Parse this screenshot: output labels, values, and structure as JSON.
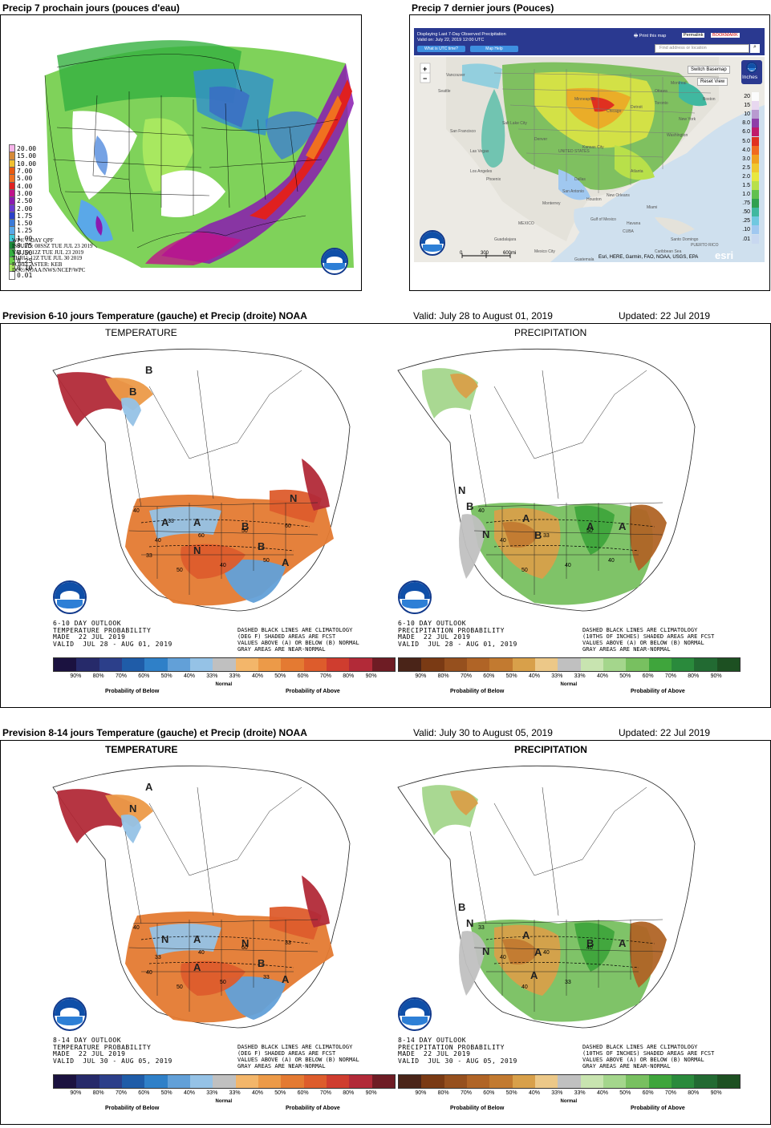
{
  "panel1": {
    "title": "Precip 7 prochain jours (pouces d'eau)",
    "legend": [
      {
        "label": "20.00",
        "color": "#f5b3e8"
      },
      {
        "label": "15.00",
        "color": "#d58a3a"
      },
      {
        "label": "10.00",
        "color": "#f0c030"
      },
      {
        "label": "7.00",
        "color": "#e85a10"
      },
      {
        "label": "5.00",
        "color": "#f07020"
      },
      {
        "label": "4.00",
        "color": "#e02020"
      },
      {
        "label": "3.00",
        "color": "#c0128a"
      },
      {
        "label": "2.50",
        "color": "#8a1ab0"
      },
      {
        "label": "2.00",
        "color": "#6a3ad0"
      },
      {
        "label": "1.75",
        "color": "#2a40c8"
      },
      {
        "label": "1.50",
        "color": "#3a7ad8"
      },
      {
        "label": "1.25",
        "color": "#5aa8e8"
      },
      {
        "label": "1.00",
        "color": "#40c8d8"
      },
      {
        "label": "0.75",
        "color": "#1a8a3a"
      },
      {
        "label": "0.50",
        "color": "#34b040"
      },
      {
        "label": "0.25",
        "color": "#6ad04a"
      },
      {
        "label": "0.10",
        "color": "#a8e860"
      },
      {
        "label": "0.01",
        "color": "#ffffff"
      }
    ],
    "info": "WPC 7-DAY QPF\nISSUED: 08SSZ TUE JUL 23 2019\nVALID: 12Z TUE JUL 23 2019\nTHRU: 12Z TUE JUL 30 2019\nFORECASTER: KEB\nDOC/NOAA/NWS/NCEP/WPC"
  },
  "panel2": {
    "title": "Precip 7 dernier jours (Pouces)",
    "header_line1": "Displaying Last 7-Day Observed Precipitation",
    "header_line2": "Valid on: July 22, 2019 12:00 UTC",
    "btn_utc": "What is UTC time?",
    "btn_help": "Map Help",
    "print_label": "Print this map",
    "permalink": "Permalink",
    "bookmark": "BOOKMARK",
    "search_placeholder": "Find address or location",
    "switch_basemap": "Switch Basemap",
    "reset_view": "Reset View",
    "inches_label": "Inches",
    "zoom_in": "+",
    "zoom_out": "−",
    "scale_labels": [
      "0",
      "300",
      "600mi"
    ],
    "attribution": "Esri, HERE, Garmin, FAO, NOAA, USGS, EPA",
    "esri": "esri",
    "place_labels": [
      "Ottawa",
      "Montreal",
      "Toronto",
      "Chicago",
      "New York",
      "Washington",
      "San Francisco",
      "Los Angeles",
      "Dallas",
      "Houston",
      "Gulf of Mexico",
      "MEXICO",
      "Guadalajara",
      "Mexico City",
      "CUBA",
      "Havana",
      "Guatemala",
      "Caribbean Sea",
      "PUERTO RICO",
      "Santo Domingo",
      "Phoenix",
      "Denver",
      "UNITED STATES",
      "Kansas City",
      "Atlanta",
      "Miami",
      "Monterrey",
      "Vancouver",
      "Seattle",
      "Minneapolis",
      "Detroit",
      "Boston",
      "New Orleans",
      "San Antonio",
      "Las Vegas",
      "Salt Lake City"
    ],
    "legend": [
      {
        "label": "20",
        "color": "#fbfbfb"
      },
      {
        "label": "15",
        "color": "#e8d8f0"
      },
      {
        "label": "10",
        "color": "#b89ad0"
      },
      {
        "label": "8.0",
        "color": "#8e3ea8"
      },
      {
        "label": "6.0",
        "color": "#c01b6a"
      },
      {
        "label": "5.0",
        "color": "#e03020"
      },
      {
        "label": "4.0",
        "color": "#f06a20"
      },
      {
        "label": "3.0",
        "color": "#f0a020"
      },
      {
        "label": "2.5",
        "color": "#f0c830"
      },
      {
        "label": "2.0",
        "color": "#e8e840"
      },
      {
        "label": "1.5",
        "color": "#b8e04a"
      },
      {
        "label": "1.0",
        "color": "#60c050"
      },
      {
        "label": ".75",
        "color": "#30a050"
      },
      {
        "label": ".50",
        "color": "#40b8a0"
      },
      {
        "label": ".25",
        "color": "#70c8e0"
      },
      {
        "label": ".10",
        "color": "#a0c8f0"
      },
      {
        "label": ".01",
        "color": "#c8d8f0"
      }
    ]
  },
  "section2": {
    "title": "Prevision 6-10 jours Temperature (gauche) et Precip (droite) NOAA",
    "valid": "Valid: July 28 to August 01, 2019",
    "updated": "Updated: 22 Jul 2019",
    "temp_label": "TEMPERATURE",
    "precip_label": "PRECIPITATION",
    "temp_outlook": "6-10 DAY OUTLOOK\nTEMPERATURE PROBABILITY\nMADE  22 JUL 2019\nVALID  JUL 28 - AUG 01, 2019",
    "precip_outlook": "6-10 DAY OUTLOOK\nPRECIPITATION PROBABILITY\nMADE  22 JUL 2019\nVALID  JUL 28 - AUG 01, 2019",
    "temp_notes": "DASHED BLACK LINES ARE CLIMATOLOGY\n(DEG F) SHADED AREAS ARE FCST\nVALUES ABOVE (A) OR BELOW (B) NORMAL\nGRAY AREAS ARE NEAR-NORMAL",
    "precip_notes": "DASHED BLACK LINES ARE CLIMATOLOGY\n(10THS OF INCHES) SHADED AREAS ARE FCST\nVALUES ABOVE (A) OR BELOW (B) NORMAL\nGRAY AREAS ARE NEAR-NORMAL",
    "temp_letters": [
      "B",
      "B",
      "N",
      "A",
      "A",
      "B",
      "A",
      "B",
      "N"
    ],
    "precip_letters": [
      "B",
      "N",
      "A",
      "A",
      "B",
      "A",
      "N"
    ],
    "contour_values_temp": [
      "40",
      "40",
      "50",
      "60",
      "40",
      "50",
      "50",
      "60",
      "33",
      "33"
    ],
    "contour_values_precip": [
      "40",
      "40",
      "50",
      "33",
      "40",
      "50",
      "40"
    ]
  },
  "section3": {
    "title": "Prevision 8-14 jours Temperature (gauche) et Precip (droite) NOAA",
    "valid": "Valid: July 30 to August 05, 2019",
    "updated": "Updated: 22 Jul 2019",
    "temp_label": "TEMPERATURE",
    "precip_label": "PRECIPITATION",
    "temp_outlook": "8-14 DAY OUTLOOK\nTEMPERATURE PROBABILITY\nMADE  22 JUL 2019\nVALID  JUL 30 - AUG 05, 2019",
    "precip_outlook": "8-14 DAY OUTLOOK\nPRECIPITATION PROBABILITY\nMADE  22 JUL 2019\nVALID  JUL 30 - AUG 05, 2019",
    "temp_notes": "DASHED BLACK LINES ARE CLIMATOLOGY\n(DEG F) SHADED AREAS ARE FCST\nVALUES ABOVE (A) OR BELOW (B) NORMAL\nGRAY AREAS ARE NEAR-NORMAL",
    "precip_notes": "DASHED BLACK LINES ARE CLIMATOLOGY\n(10THS OF INCHES) SHADED AREAS ARE FCST\nVALUES ABOVE (A) OR BELOW (B) NORMAL\nGRAY AREAS ARE NEAR-NORMAL",
    "temp_letters": [
      "A",
      "N",
      "A",
      "N",
      "A",
      "B",
      "A",
      "N"
    ],
    "precip_letters": [
      "N",
      "B",
      "A",
      "B",
      "A",
      "A",
      "N",
      "A"
    ],
    "contour_values_temp": [
      "40",
      "33",
      "50",
      "40",
      "50",
      "60",
      "33",
      "33",
      "40"
    ],
    "contour_values_precip": [
      "33",
      "40",
      "40",
      "40",
      "33",
      "40"
    ]
  },
  "legend_bar": {
    "labels": [
      "90%",
      "80%",
      "70%",
      "60%",
      "50%",
      "40%",
      "33%",
      "33%",
      "40%",
      "50%",
      "60%",
      "70%",
      "80%",
      "90%"
    ],
    "normal": "Normal",
    "below": "Probability of Below",
    "above": "Probability of Above",
    "temp_colors": [
      "#1b1240",
      "#262a6a",
      "#2c3f8a",
      "#1f5ca8",
      "#2f80c8",
      "#62a0d8",
      "#95c2e6",
      "#c0c0c0",
      "#f3b66a",
      "#ec9a48",
      "#e47a32",
      "#dd5c2c",
      "#cf3d2f",
      "#b22a38",
      "#6e1c24"
    ],
    "precip_colors": [
      "#4a2418",
      "#7a3a14",
      "#96501e",
      "#b06426",
      "#c27a30",
      "#d8a04a",
      "#ecc888",
      "#c0c0c0",
      "#c8e4b0",
      "#a4d68c",
      "#78c060",
      "#3fa53c",
      "#2a8a3c",
      "#226a32",
      "#1d5022"
    ]
  }
}
